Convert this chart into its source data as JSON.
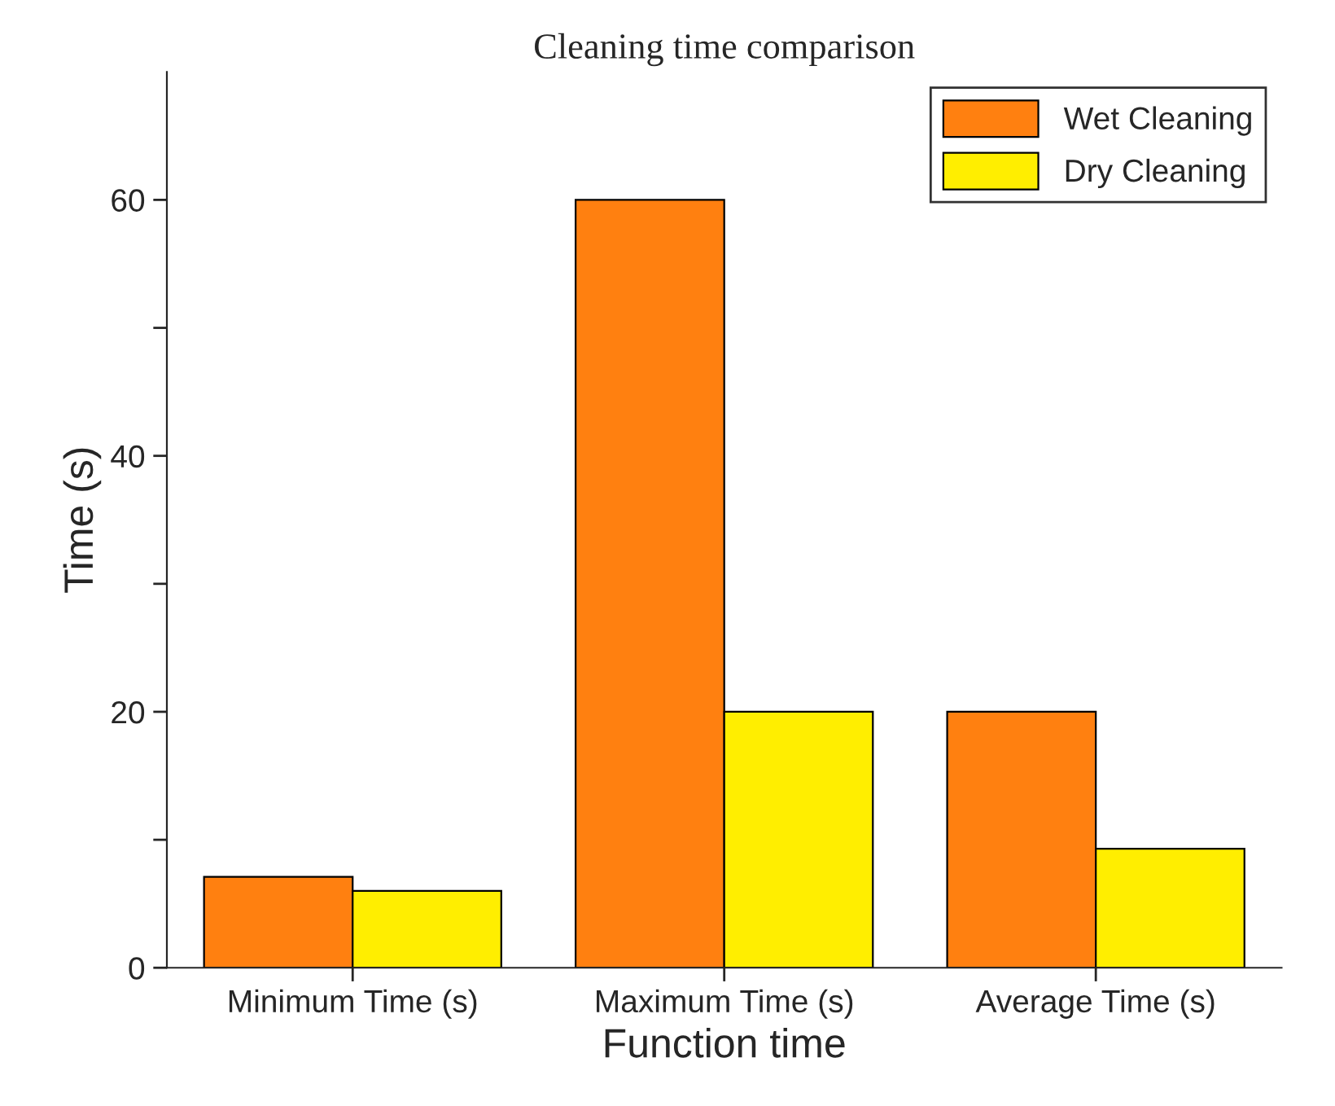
{
  "chart_data": {
    "type": "bar",
    "title": "Cleaning time comparison",
    "xlabel": "Function time",
    "ylabel": "Time (s)",
    "categories": [
      "Minimum Time (s)",
      "Maximum Time (s)",
      "Average Time (s)"
    ],
    "series": [
      {
        "name": "Wet Cleaning",
        "color": "#ff8010",
        "values": [
          7.1,
          60,
          20
        ]
      },
      {
        "name": "Dry Cleaning",
        "color": "#ffee00",
        "values": [
          6,
          20,
          9.3
        ]
      }
    ],
    "ylim": [
      0,
      70
    ],
    "yticks": [
      0,
      {
        "value": 10,
        "label": null
      },
      20,
      {
        "value": 30,
        "label": null
      },
      40,
      {
        "value": 50,
        "label": null
      },
      60
    ],
    "legend": "top right",
    "grid": false
  }
}
